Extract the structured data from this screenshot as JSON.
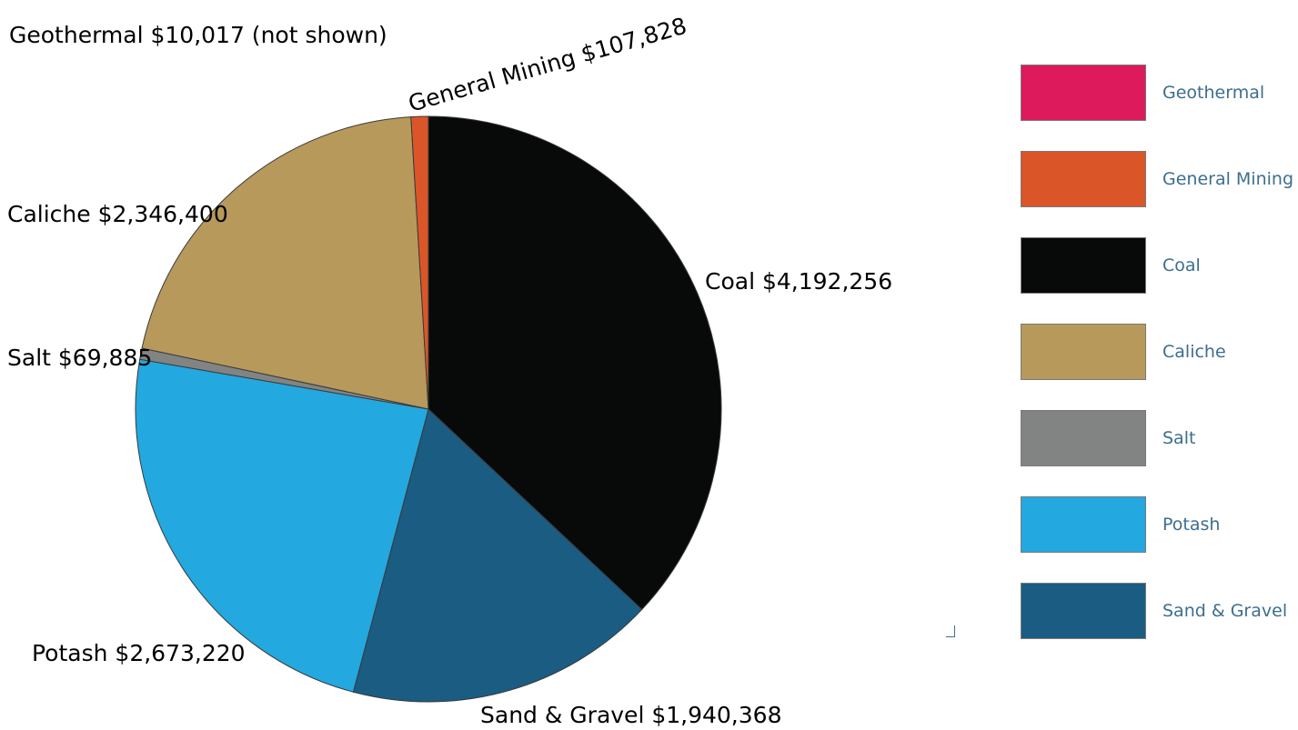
{
  "chart_data": {
    "type": "pie",
    "slices": [
      {
        "name": "Geothermal",
        "value": 10017,
        "label": "Geothermal $10,017 (not shown)",
        "color": "#dc1a5c",
        "shown": false
      },
      {
        "name": "General Mining",
        "value": 107828,
        "label": "General Mining $107,828",
        "color": "#da5629",
        "shown": true
      },
      {
        "name": "Coal",
        "value": 4192256,
        "label": "Coal $4,192,256",
        "color": "#080909",
        "shown": true
      },
      {
        "name": "Caliche",
        "value": 2346400,
        "label": "Caliche $2,346,400",
        "color": "#b7995b",
        "shown": true
      },
      {
        "name": "Salt",
        "value": 69885,
        "label": "Salt $69,885",
        "color": "#828483",
        "shown": true
      },
      {
        "name": "Potash",
        "value": 2673220,
        "label": "Potash $2,673,220",
        "color": "#23a8e0",
        "shown": true
      },
      {
        "name": "Sand & Gravel",
        "value": 1940368,
        "label": "Sand & Gravel $1,940,368",
        "color": "#1a5c82",
        "shown": true
      }
    ],
    "legend": [
      "Geothermal",
      "General Mining",
      "Coal",
      "Caliche",
      "Salt",
      "Potash",
      "Sand & Gravel"
    ],
    "legend_position": "right"
  }
}
